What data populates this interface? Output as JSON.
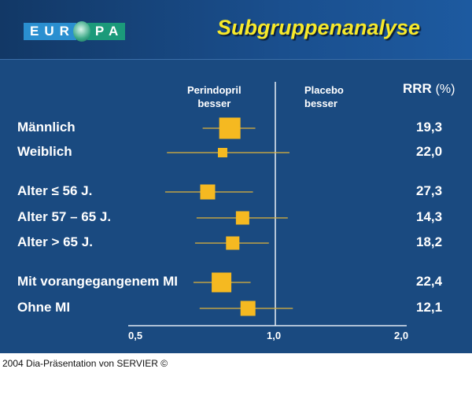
{
  "header": {
    "logo_text_left": "EUR",
    "logo_text_right": "PA",
    "title": "Subgruppenanalyse"
  },
  "footer": "2004 Dia-Präsentation von SERVIER ©",
  "colors": {
    "background": "#1a4a80",
    "marker": "#f5b921",
    "title": "#f7e92a"
  },
  "chart_data": {
    "type": "forest",
    "title": "Subgruppenanalyse",
    "x_scale": "log",
    "xlim": [
      0.5,
      2.0
    ],
    "x_ticks": [
      "0,5",
      "1,0",
      "2,0"
    ],
    "reference_line": 1.0,
    "left_annotation": "Perindopril besser",
    "left_annotation_lines": [
      "Perindopril",
      "besser"
    ],
    "right_annotation_lines": [
      "Placebo",
      "besser"
    ],
    "value_column_header": "RRR",
    "value_column_unit": "(%)",
    "rows": [
      {
        "label": "Männlich",
        "rrr": "19,3",
        "estimate": 0.807,
        "ci": [
          0.71,
          0.91
        ]
      },
      {
        "label": "Weiblich",
        "rrr": "22,0",
        "estimate": 0.78,
        "ci": [
          0.6,
          1.08
        ]
      },
      {
        "label": "Alter ≤ 56 J.",
        "rrr": "27,3",
        "estimate": 0.727,
        "ci": [
          0.595,
          0.9
        ]
      },
      {
        "label": "Alter 57 – 65 J.",
        "rrr": "14,3",
        "estimate": 0.857,
        "ci": [
          0.69,
          1.07
        ]
      },
      {
        "label": "Alter > 65 J.",
        "rrr": "18,2",
        "estimate": 0.818,
        "ci": [
          0.685,
          0.97
        ]
      },
      {
        "label": "Mit vorangegangenem MI",
        "rrr": "22,4",
        "estimate": 0.776,
        "ci": [
          0.68,
          0.89
        ]
      },
      {
        "label": "Ohne MI",
        "rrr": "12,1",
        "estimate": 0.879,
        "ci": [
          0.7,
          1.1
        ]
      }
    ]
  }
}
